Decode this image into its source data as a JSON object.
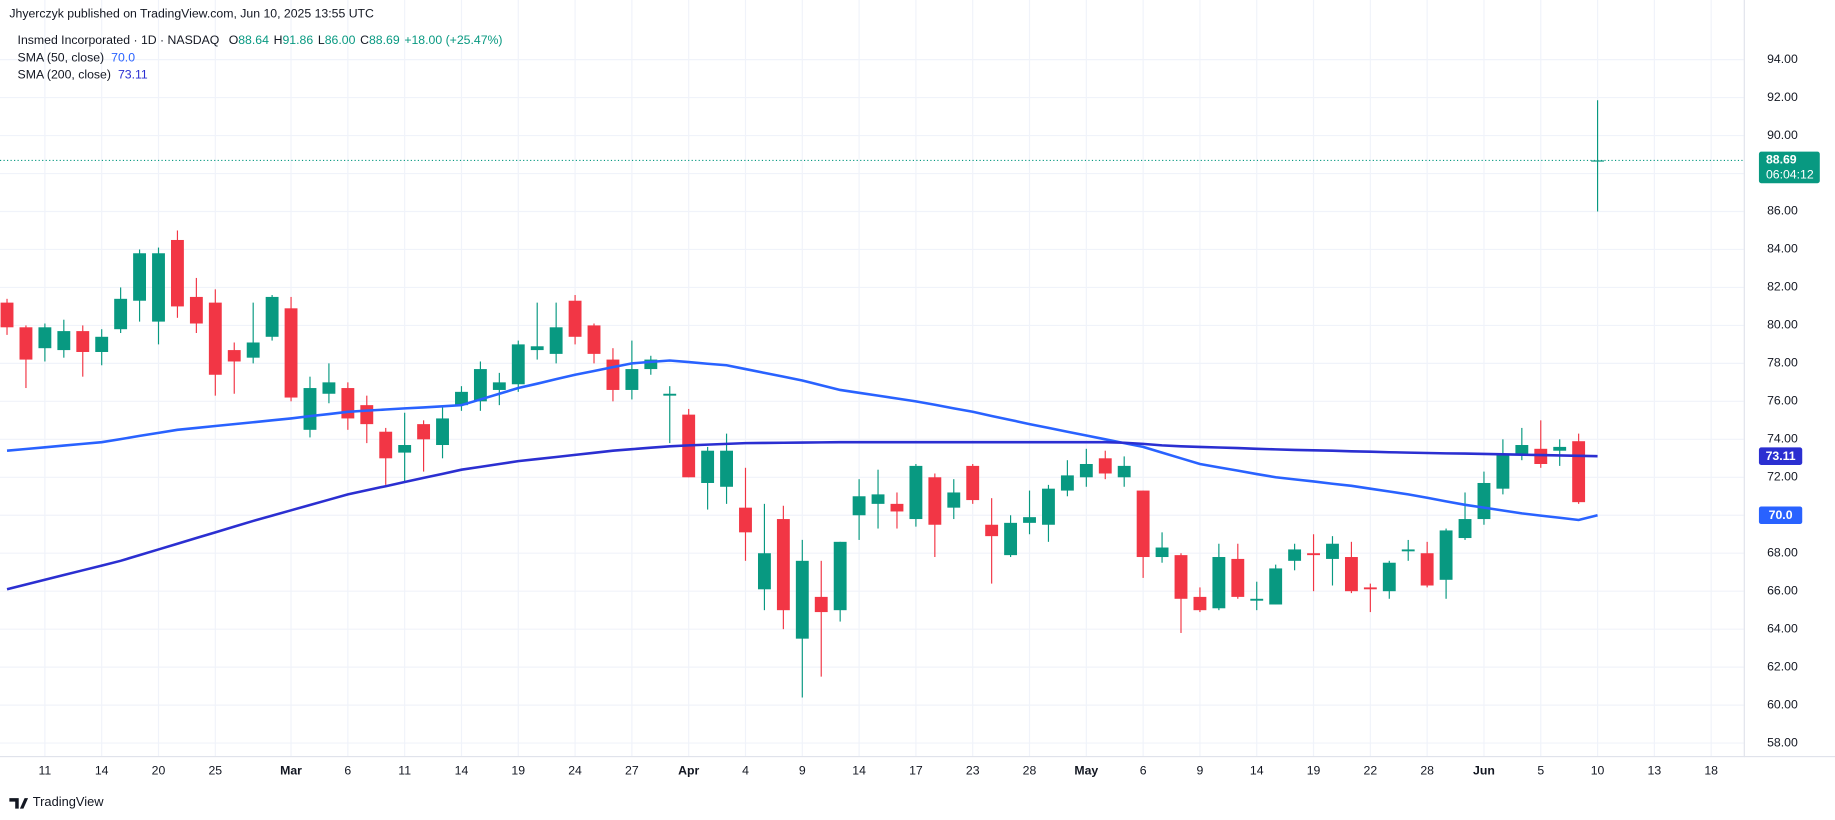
{
  "header": {
    "publisher": "Jhyerczyk published on TradingView.com, Jun 10, 2025 13:55 UTC"
  },
  "footer": {
    "brand": "TradingView"
  },
  "chart_data": {
    "type": "candlestick",
    "title": "Insmed Incorporated · 1D · NASDAQ",
    "ohlc_legend": [
      {
        "key": "O",
        "value": "88.64"
      },
      {
        "key": "H",
        "value": "91.86"
      },
      {
        "key": "L",
        "value": "86.00"
      },
      {
        "key": "C",
        "value": "88.69"
      }
    ],
    "change": "+18.00 (+25.47%)",
    "countdown": "06:04:12",
    "up_color": "#089981",
    "down_color": "#f23645",
    "ylim": [
      57.32,
      97.14
    ],
    "yticks": [
      {
        "value": 58,
        "label": "58.00"
      },
      {
        "value": 60,
        "label": "60.00"
      },
      {
        "value": 62,
        "label": "62.00"
      },
      {
        "value": 64,
        "label": "64.00"
      },
      {
        "value": 66,
        "label": "66.00"
      },
      {
        "value": 68,
        "label": "68.00"
      },
      {
        "value": 70,
        "label": "70.00"
      },
      {
        "value": 72,
        "label": "72.00"
      },
      {
        "value": 74,
        "label": "74.00"
      },
      {
        "value": 76,
        "label": "76.00"
      },
      {
        "value": 78,
        "label": "78.00"
      },
      {
        "value": 80,
        "label": "80.00"
      },
      {
        "value": 82,
        "label": "82.00"
      },
      {
        "value": 84,
        "label": "84.00"
      },
      {
        "value": 86,
        "label": "86.00"
      },
      {
        "value": 88,
        "label": "88.00"
      },
      {
        "value": 90,
        "label": "90.00"
      },
      {
        "value": 92,
        "label": "92.00"
      },
      {
        "value": 94,
        "label": "94.00"
      }
    ],
    "grid": true,
    "categories": [
      null,
      null,
      "11",
      null,
      null,
      "14",
      null,
      null,
      "20",
      null,
      null,
      "25",
      null,
      null,
      null,
      "Mar",
      null,
      null,
      "6",
      null,
      null,
      "11",
      null,
      null,
      "14",
      null,
      null,
      "19",
      null,
      null,
      "24",
      null,
      null,
      "27",
      null,
      null,
      "Apr",
      null,
      null,
      "4",
      null,
      null,
      "9",
      null,
      null,
      "14",
      null,
      null,
      "17",
      null,
      null,
      "23",
      null,
      null,
      "28",
      null,
      null,
      "May",
      null,
      null,
      "6",
      null,
      null,
      "9",
      null,
      null,
      "14",
      null,
      null,
      "19",
      null,
      null,
      "22",
      null,
      null,
      "28",
      null,
      null,
      "Jun",
      null,
      null,
      "5",
      null,
      null,
      "10",
      null,
      null,
      "13",
      null,
      null,
      "18",
      null
    ],
    "month_labels": [
      "Mar",
      "Apr",
      "May",
      "Jun"
    ],
    "open": [
      81.2,
      79.9,
      78.8,
      78.7,
      79.7,
      78.6,
      79.8,
      81.3,
      80.2,
      84.5,
      81.5,
      81.2,
      78.7,
      78.3,
      79.4,
      80.9,
      74.5,
      76.4,
      76.7,
      75.8,
      74.4,
      73.3,
      74.8,
      73.7,
      75.8,
      76.0,
      76.6,
      76.9,
      78.7,
      78.5,
      81.3,
      80.0,
      78.2,
      76.6,
      77.7,
      76.3,
      75.3,
      71.7,
      71.5,
      70.4,
      66.1,
      69.8,
      63.5,
      65.7,
      65.0,
      70.0,
      70.6,
      70.6,
      69.8,
      72.0,
      70.4,
      72.6,
      69.5,
      67.9,
      69.6,
      69.5,
      71.3,
      72.0,
      73.0,
      72.0,
      71.3,
      67.8,
      67.9,
      65.7,
      65.1,
      67.7,
      65.5,
      65.3,
      67.6,
      68.0,
      67.7,
      67.8,
      66.2,
      66.0,
      68.1,
      68.0,
      66.6,
      68.8,
      69.8,
      71.4,
      73.2,
      73.5,
      73.4,
      73.9,
      88.64,
      null,
      null,
      null,
      null,
      null,
      null,
      null
    ],
    "high": [
      81.4,
      80.0,
      80.1,
      80.3,
      80.0,
      79.8,
      82.0,
      84.0,
      84.1,
      85.0,
      82.5,
      81.9,
      79.1,
      81.2,
      81.6,
      81.5,
      77.3,
      78.0,
      77.0,
      76.3,
      74.6,
      75.4,
      75.0,
      75.7,
      76.8,
      78.1,
      77.5,
      79.2,
      81.2,
      81.2,
      81.6,
      80.1,
      78.8,
      79.2,
      78.4,
      76.8,
      75.6,
      73.6,
      74.3,
      72.5,
      70.6,
      70.5,
      68.7,
      67.6,
      68.6,
      71.9,
      72.4,
      71.2,
      72.7,
      72.2,
      71.9,
      72.7,
      70.9,
      70.0,
      71.3,
      71.6,
      72.9,
      73.5,
      73.4,
      73.1,
      71.3,
      69.1,
      68.0,
      66.2,
      68.5,
      68.5,
      66.5,
      67.4,
      68.5,
      69.0,
      68.9,
      68.6,
      66.4,
      67.6,
      68.7,
      68.6,
      69.3,
      71.2,
      72.3,
      74.0,
      74.6,
      75.0,
      74.0,
      74.3,
      91.86,
      null,
      null,
      null,
      null,
      null,
      null,
      null
    ],
    "low": [
      79.5,
      76.7,
      78.1,
      78.3,
      77.3,
      77.9,
      79.6,
      80.2,
      79.0,
      80.4,
      79.6,
      76.3,
      76.4,
      78.0,
      79.2,
      76.0,
      74.1,
      75.9,
      74.5,
      73.8,
      71.6,
      71.8,
      72.3,
      73.0,
      75.5,
      75.5,
      75.8,
      76.5,
      78.2,
      78.0,
      79.0,
      78.0,
      76.0,
      76.1,
      77.4,
      73.8,
      72.0,
      70.3,
      70.6,
      67.6,
      65.0,
      64.0,
      60.4,
      61.5,
      64.4,
      68.7,
      69.3,
      69.3,
      69.4,
      67.8,
      69.8,
      70.6,
      66.4,
      67.8,
      69.0,
      68.6,
      71.0,
      71.5,
      71.9,
      71.5,
      66.7,
      67.5,
      63.8,
      64.9,
      65.0,
      65.6,
      65.0,
      65.3,
      67.1,
      66.0,
      66.3,
      65.9,
      64.9,
      65.6,
      67.6,
      66.2,
      65.6,
      68.7,
      69.5,
      71.1,
      72.9,
      72.5,
      72.6,
      70.6,
      86,
      null,
      null,
      null,
      null,
      null,
      null,
      null
    ],
    "close": [
      79.9,
      78.2,
      79.9,
      79.7,
      78.6,
      79.4,
      81.4,
      83.8,
      83.8,
      81.0,
      80.1,
      77.4,
      78.1,
      79.1,
      81.5,
      76.2,
      76.7,
      77.0,
      75.1,
      74.8,
      73.0,
      73.7,
      74.0,
      75.1,
      76.5,
      77.7,
      77.0,
      79.0,
      78.9,
      79.9,
      79.4,
      78.5,
      76.6,
      77.7,
      78.2,
      76.4,
      72.0,
      73.4,
      73.4,
      69.1,
      68.0,
      65.0,
      67.6,
      64.9,
      68.6,
      71.0,
      71.1,
      70.2,
      72.6,
      69.5,
      71.2,
      70.8,
      68.9,
      69.6,
      69.9,
      71.4,
      72.1,
      72.7,
      72.2,
      72.6,
      67.8,
      68.3,
      65.6,
      65.0,
      67.8,
      65.7,
      65.6,
      67.2,
      68.2,
      67.9,
      68.5,
      66.0,
      66.1,
      67.5,
      68.2,
      66.3,
      69.2,
      69.8,
      71.7,
      73.2,
      73.7,
      72.7,
      73.6,
      70.69,
      88.69,
      null,
      null,
      null,
      null,
      null,
      null,
      null
    ],
    "series": [
      {
        "name": "SMA (50, close)",
        "color": "#2962ff",
        "badge": {
          "value": 70,
          "label": "70.0"
        },
        "values": [
          73.4,
          73.49,
          73.58,
          73.67,
          73.76,
          73.85,
          74.01,
          74.18,
          74.34,
          74.5,
          74.6,
          74.7,
          74.8,
          74.9,
          75.0,
          75.1,
          75.22,
          75.33,
          75.45,
          75.51,
          75.57,
          75.63,
          75.68,
          75.74,
          75.8,
          76.1,
          76.4,
          76.7,
          76.93,
          77.17,
          77.4,
          77.6,
          77.8,
          78.0,
          78.08,
          78.15,
          78.07,
          77.98,
          77.9,
          77.7,
          77.5,
          77.3,
          77.1,
          76.85,
          76.6,
          76.45,
          76.3,
          76.15,
          76.0,
          75.82,
          75.63,
          75.45,
          75.23,
          75.02,
          74.8,
          74.6,
          74.4,
          74.2,
          74.0,
          73.8,
          73.6,
          73.3,
          73.0,
          72.7,
          72.52,
          72.35,
          72.17,
          72.0,
          71.89,
          71.78,
          71.66,
          71.55,
          71.4,
          71.25,
          71.1,
          70.92,
          70.73,
          70.55,
          70.4,
          70.25,
          70.1,
          69.98,
          69.87,
          69.75,
          70.0,
          null,
          null,
          null,
          null,
          null,
          null,
          null
        ]
      },
      {
        "name": "SMA (200, close)",
        "color": "#2b2fd1",
        "badge": 73.11,
        "values": [
          66.1,
          66.35,
          66.6,
          66.85,
          67.1,
          67.35,
          67.6,
          67.9,
          68.2,
          68.5,
          68.8,
          69.1,
          69.4,
          69.7,
          69.98,
          70.26,
          70.54,
          70.82,
          71.1,
          71.32,
          71.53,
          71.75,
          71.97,
          72.18,
          72.4,
          72.55,
          72.7,
          72.85,
          72.96,
          73.07,
          73.18,
          73.29,
          73.4,
          73.48,
          73.56,
          73.63,
          73.68,
          73.72,
          73.76,
          73.8,
          73.81,
          73.82,
          73.83,
          73.84,
          73.85,
          73.85,
          73.85,
          73.85,
          73.85,
          73.85,
          73.85,
          73.85,
          73.85,
          73.85,
          73.85,
          73.85,
          73.85,
          73.85,
          73.85,
          73.82,
          73.76,
          73.68,
          73.63,
          73.6,
          73.57,
          73.54,
          73.5,
          73.47,
          73.44,
          73.42,
          73.4,
          73.37,
          73.35,
          73.32,
          73.3,
          73.28,
          73.26,
          73.25,
          73.23,
          73.21,
          73.19,
          73.17,
          73.15,
          73.13,
          73.11,
          null,
          null,
          null,
          null,
          null,
          null,
          null
        ]
      }
    ]
  }
}
